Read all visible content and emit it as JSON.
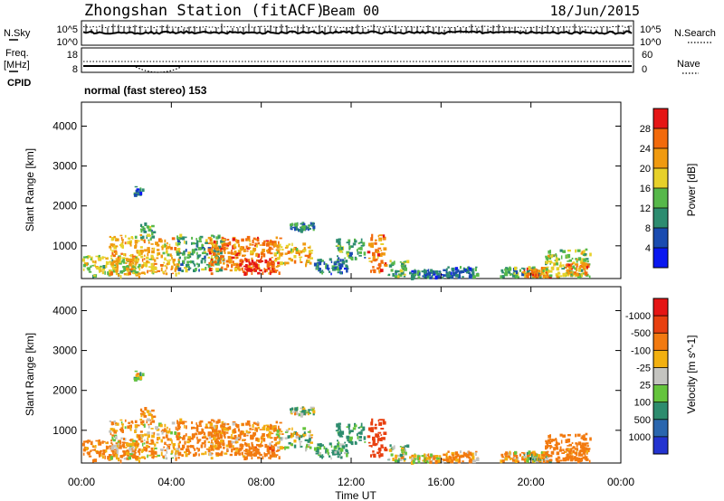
{
  "header": {
    "station": "Zhongshan Station (fitACF)",
    "beam": "Beam 00",
    "date": "18/Jun/2015"
  },
  "strip_labels": {
    "nsky": "N.Sky",
    "nsearch": "N.Search",
    "freq": "Freq.",
    "freq_unit": "[MHz]",
    "nave": "Nave",
    "cpid": "CPID",
    "nsky_top": "10^5",
    "nsky_bottom": "10^0",
    "nsearch_top": "10^5",
    "nsearch_bottom": "10^0",
    "freq_top": "18",
    "freq_bottom": "8",
    "nave_top": "60",
    "nave_bottom": "0",
    "cpid_text": "normal (fast stereo) 153"
  },
  "axes": {
    "ylabel": "Slant Range [km]",
    "yticks": [
      "1000",
      "2000",
      "3000",
      "4000"
    ],
    "xlabel": "Time UT",
    "xticks": [
      "00:00",
      "04:00",
      "08:00",
      "12:00",
      "16:00",
      "20:00",
      "00:00"
    ]
  },
  "colorbars": {
    "power_label": "Power [dB]",
    "power_ticks": [
      "4",
      "8",
      "12",
      "16",
      "20",
      "24",
      "28"
    ],
    "power_colors": [
      "#0a18f0",
      "#1a4bb0",
      "#2d8c70",
      "#56b84a",
      "#e7d12a",
      "#f09a10",
      "#f26a0c",
      "#e51515"
    ],
    "velocity_label": "Velocity [m s^-1]",
    "velocity_ticks": [
      "1000",
      "500",
      "100",
      "25",
      "-25",
      "-100",
      "-500",
      "-1000"
    ],
    "velocity_colors": [
      "#2333d0",
      "#2a66ae",
      "#2d8c6e",
      "#64c43c",
      "#c4c4c0",
      "#f2b010",
      "#f27a10",
      "#e84010",
      "#e51515"
    ]
  },
  "chart_data": [
    {
      "type": "heatmap",
      "name": "power",
      "x_range_hours": [
        0,
        24
      ],
      "y_range_km": [
        180,
        4600
      ],
      "colorbar_range_db": [
        0,
        32
      ],
      "blobs": [
        {
          "t0": 0.0,
          "t1": 2.6,
          "r0": 260,
          "r1": 800,
          "dB": 16
        },
        {
          "t0": 1.2,
          "t1": 4.3,
          "r0": 300,
          "r1": 1300,
          "dB": 20
        },
        {
          "t0": 2.6,
          "t1": 3.2,
          "r0": 1200,
          "r1": 1600,
          "dB": 12
        },
        {
          "t0": 2.3,
          "t1": 2.7,
          "r0": 2300,
          "r1": 2500,
          "dB": 8
        },
        {
          "t0": 4.2,
          "t1": 6.3,
          "r0": 400,
          "r1": 1300,
          "dB": 12
        },
        {
          "t0": 5.6,
          "t1": 8.8,
          "r0": 320,
          "r1": 1250,
          "dB": 24
        },
        {
          "t0": 7.0,
          "t1": 8.5,
          "r0": 330,
          "r1": 700,
          "dB": 28
        },
        {
          "t0": 8.6,
          "t1": 10.2,
          "r0": 550,
          "r1": 1100,
          "dB": 20
        },
        {
          "t0": 9.2,
          "t1": 10.3,
          "r0": 1400,
          "r1": 1600,
          "dB": 8
        },
        {
          "t0": 10.3,
          "t1": 11.8,
          "r0": 320,
          "r1": 700,
          "dB": 8
        },
        {
          "t0": 11.3,
          "t1": 12.6,
          "r0": 700,
          "r1": 1200,
          "dB": 12
        },
        {
          "t0": 12.7,
          "t1": 13.5,
          "r0": 350,
          "r1": 1300,
          "dB": 24
        },
        {
          "t0": 13.6,
          "t1": 14.6,
          "r0": 230,
          "r1": 650,
          "dB": 12
        },
        {
          "t0": 14.6,
          "t1": 16.1,
          "r0": 220,
          "r1": 420,
          "dB": 8
        },
        {
          "t0": 16.2,
          "t1": 17.6,
          "r0": 220,
          "r1": 500,
          "dB": 8
        },
        {
          "t0": 18.6,
          "t1": 20.4,
          "r0": 240,
          "r1": 500,
          "dB": 12
        },
        {
          "t0": 19.6,
          "t1": 20.8,
          "r0": 260,
          "r1": 480,
          "dB": 24
        },
        {
          "t0": 20.5,
          "t1": 22.6,
          "r0": 230,
          "r1": 950,
          "dB": 16
        },
        {
          "t0": 21.5,
          "t1": 22.5,
          "r0": 300,
          "r1": 600,
          "dB": 24
        }
      ]
    },
    {
      "type": "heatmap",
      "name": "velocity",
      "x_range_hours": [
        0,
        24
      ],
      "y_range_km": [
        180,
        4600
      ],
      "colorbar_range_ms": [
        -1000,
        1000
      ],
      "blobs": [
        {
          "t0": 0.0,
          "t1": 2.6,
          "r0": 260,
          "r1": 800,
          "v": -200
        },
        {
          "t0": 1.2,
          "t1": 4.3,
          "r0": 300,
          "r1": 1300,
          "v": -100
        },
        {
          "t0": 2.6,
          "t1": 3.2,
          "r0": 1200,
          "r1": 1600,
          "v": -150
        },
        {
          "t0": 2.3,
          "t1": 2.7,
          "r0": 2300,
          "r1": 2500,
          "v": 40
        },
        {
          "t0": 4.2,
          "t1": 6.3,
          "r0": 400,
          "r1": 1300,
          "v": -200
        },
        {
          "t0": 5.6,
          "t1": 8.8,
          "r0": 320,
          "r1": 1250,
          "v": -150
        },
        {
          "t0": 7.0,
          "t1": 8.5,
          "r0": 330,
          "r1": 700,
          "v": -400
        },
        {
          "t0": 8.6,
          "t1": 10.2,
          "r0": 550,
          "r1": 1100,
          "v": 0
        },
        {
          "t0": 9.2,
          "t1": 10.3,
          "r0": 1400,
          "r1": 1600,
          "v": 0
        },
        {
          "t0": 10.3,
          "t1": 11.8,
          "r0": 320,
          "r1": 700,
          "v": 120
        },
        {
          "t0": 11.3,
          "t1": 12.6,
          "r0": 700,
          "r1": 1200,
          "v": 200
        },
        {
          "t0": 12.7,
          "t1": 13.5,
          "r0": 350,
          "r1": 1300,
          "v": -700
        },
        {
          "t0": 13.6,
          "t1": 14.6,
          "r0": 230,
          "r1": 650,
          "v": 0
        },
        {
          "t0": 14.6,
          "t1": 16.1,
          "r0": 220,
          "r1": 420,
          "v": -60
        },
        {
          "t0": 16.2,
          "t1": 17.6,
          "r0": 220,
          "r1": 500,
          "v": -150
        },
        {
          "t0": 18.6,
          "t1": 20.4,
          "r0": 240,
          "r1": 500,
          "v": -120
        },
        {
          "t0": 19.6,
          "t1": 20.8,
          "r0": 260,
          "r1": 480,
          "v": 0
        },
        {
          "t0": 20.5,
          "t1": 22.6,
          "r0": 230,
          "r1": 950,
          "v": -300
        },
        {
          "t0": 21.5,
          "t1": 22.5,
          "r0": 300,
          "r1": 600,
          "v": -200
        }
      ]
    }
  ]
}
